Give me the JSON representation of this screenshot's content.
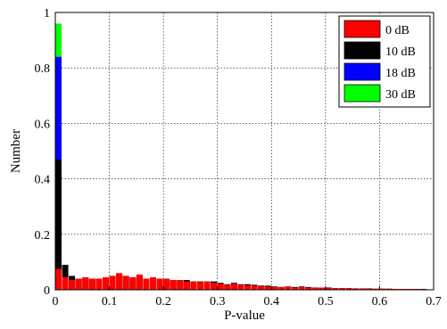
{
  "chart_data": {
    "type": "bar",
    "title": "",
    "xlabel": "P-value",
    "ylabel": "Number",
    "xlim": [
      0,
      0.7
    ],
    "ylim": [
      0,
      1
    ],
    "xticks": [
      "0",
      "0.1",
      "0.2",
      "0.3",
      "0.4",
      "0.5",
      "0.6",
      "0.7"
    ],
    "yticks": [
      "0",
      "0.2",
      "0.4",
      "0.6",
      "0.8",
      "1"
    ],
    "grid": true,
    "legend_position": "top-right",
    "bin_width": 0.0125,
    "bin_starts": [
      0,
      0.0125,
      0.025,
      0.0375,
      0.05,
      0.0625,
      0.075,
      0.0875,
      0.1,
      0.1125,
      0.125,
      0.1375,
      0.15,
      0.1625,
      0.175,
      0.1875,
      0.2,
      0.2125,
      0.225,
      0.2375,
      0.25,
      0.2625,
      0.275,
      0.2875,
      0.3,
      0.3125,
      0.325,
      0.3375,
      0.35,
      0.3625,
      0.375,
      0.3875,
      0.4,
      0.4125,
      0.425,
      0.4375,
      0.45,
      0.4625,
      0.475,
      0.4875,
      0.5,
      0.5125,
      0.525,
      0.5375,
      0.55,
      0.5625,
      0.575,
      0.5875,
      0.6,
      0.6125,
      0.625,
      0.6375,
      0.65,
      0.6625,
      0.675
    ],
    "series": [
      {
        "name": "30 dB",
        "color": "#00ff00",
        "values": [
          0.96,
          0.01,
          0.005,
          0.003,
          0.003,
          0.002,
          0.002,
          0.002,
          0.002,
          0.002,
          0.002,
          0.002,
          0.002,
          0.002,
          0.002,
          0.001,
          0.001,
          0.001,
          0.001,
          0.001,
          0.001,
          0.001,
          0.001,
          0.001,
          0.001,
          0.001,
          0.001,
          0.001,
          0.001,
          0.001,
          0.001,
          0.001,
          0.001,
          0.001,
          0.001,
          0.001,
          0.001,
          0.001,
          0.001,
          0.001,
          0.001,
          0.001,
          0.001,
          0.001,
          0.001,
          0.001,
          0.001,
          0.001,
          0.001,
          0.001,
          0.001,
          0.001,
          0.001,
          0.001,
          0.001
        ]
      },
      {
        "name": "18 dB",
        "color": "#0000ff",
        "values": [
          0.84,
          0.03,
          0.01,
          0.005,
          0.005,
          0.004,
          0.004,
          0.004,
          0.004,
          0.004,
          0.004,
          0.004,
          0.004,
          0.003,
          0.003,
          0.003,
          0.003,
          0.003,
          0.003,
          0.003,
          0.003,
          0.003,
          0.003,
          0.003,
          0.002,
          0.002,
          0.002,
          0.002,
          0.002,
          0.002,
          0.002,
          0.002,
          0.002,
          0.002,
          0.002,
          0.002,
          0.002,
          0.002,
          0.002,
          0.002,
          0.002,
          0.002,
          0.002,
          0.002,
          0.002,
          0.002,
          0.002,
          0.002,
          0.002,
          0.002,
          0.002,
          0.002,
          0.002,
          0.002,
          0.002
        ]
      },
      {
        "name": "10 dB",
        "color": "#000000",
        "values": [
          0.47,
          0.09,
          0.05,
          0.04,
          0.045,
          0.04,
          0.04,
          0.045,
          0.05,
          0.055,
          0.05,
          0.045,
          0.05,
          0.04,
          0.045,
          0.04,
          0.04,
          0.035,
          0.035,
          0.035,
          0.03,
          0.03,
          0.03,
          0.03,
          0.025,
          0.02,
          0.025,
          0.02,
          0.02,
          0.018,
          0.015,
          0.015,
          0.012,
          0.01,
          0.012,
          0.01,
          0.012,
          0.01,
          0.008,
          0.008,
          0.008,
          0.006,
          0.006,
          0.006,
          0.005,
          0.005,
          0.005,
          0.004,
          0.004,
          0.004,
          0.003,
          0.003,
          0.003,
          0.003,
          0.003
        ]
      },
      {
        "name": "0 dB",
        "color": "#ff0000",
        "values": [
          0.075,
          0.045,
          0.035,
          0.04,
          0.045,
          0.04,
          0.04,
          0.045,
          0.05,
          0.06,
          0.05,
          0.045,
          0.055,
          0.04,
          0.045,
          0.04,
          0.04,
          0.035,
          0.035,
          0.03,
          0.03,
          0.028,
          0.03,
          0.025,
          0.022,
          0.018,
          0.022,
          0.018,
          0.016,
          0.015,
          0.013,
          0.012,
          0.01,
          0.01,
          0.012,
          0.008,
          0.01,
          0.008,
          0.007,
          0.008,
          0.006,
          0.005,
          0.006,
          0.005,
          0.004,
          0.005,
          0.004,
          0.003,
          0.004,
          0.003,
          0.003,
          0.003,
          0.003,
          0.003,
          0.002
        ]
      }
    ]
  }
}
